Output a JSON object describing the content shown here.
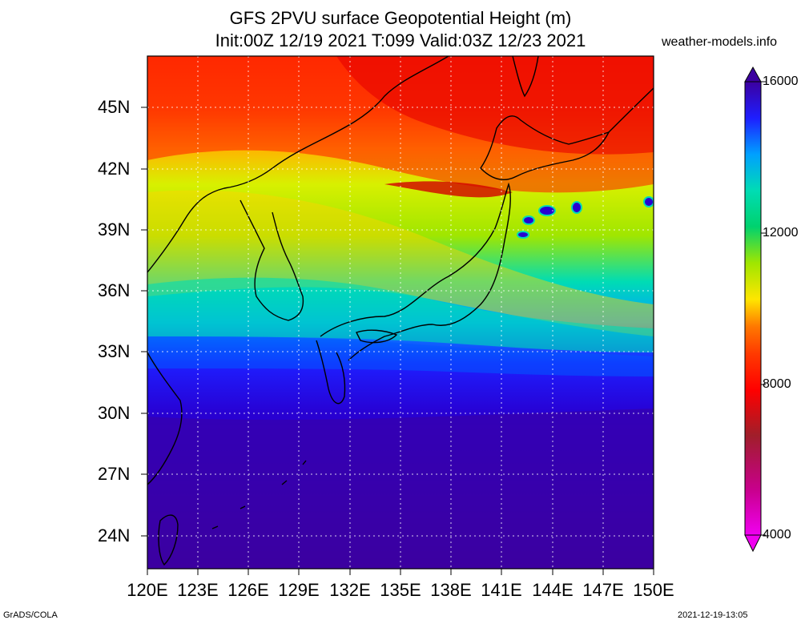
{
  "header": {
    "title_line1": "GFS 2PVU surface Geopotential Height (m)",
    "title_line2": "Init:00Z 12/19 2021 T:099 Valid:03Z 12/23 2021",
    "site": "weather-models.info"
  },
  "map": {
    "lat_labels": [
      "45N",
      "42N",
      "39N",
      "36N",
      "33N",
      "30N",
      "27N",
      "24N"
    ],
    "lon_labels": [
      "120E",
      "123E",
      "126E",
      "129E",
      "132E",
      "135E",
      "138E",
      "141E",
      "144E",
      "147E",
      "150E"
    ],
    "gridlines": true,
    "land_outline_color": "#000000"
  },
  "colorbar": {
    "labels": [
      "16000",
      "12000",
      "8000",
      "4000"
    ],
    "colors": [
      "#f000f0",
      "#c8008c",
      "#a01e2a",
      "#cd1a1a",
      "#ff0000",
      "#ff3a00",
      "#ff7800",
      "#ffb400",
      "#ffe600",
      "#d8f000",
      "#a0e600",
      "#50dc28",
      "#00d26e",
      "#00dcb4",
      "#00c8f0",
      "#00a0ff",
      "#005aff",
      "#1e1eff",
      "#2800d2",
      "#3c00a0"
    ]
  },
  "footer": {
    "left": "GrADS/COLA",
    "right": "2021-12-19-13:05"
  }
}
